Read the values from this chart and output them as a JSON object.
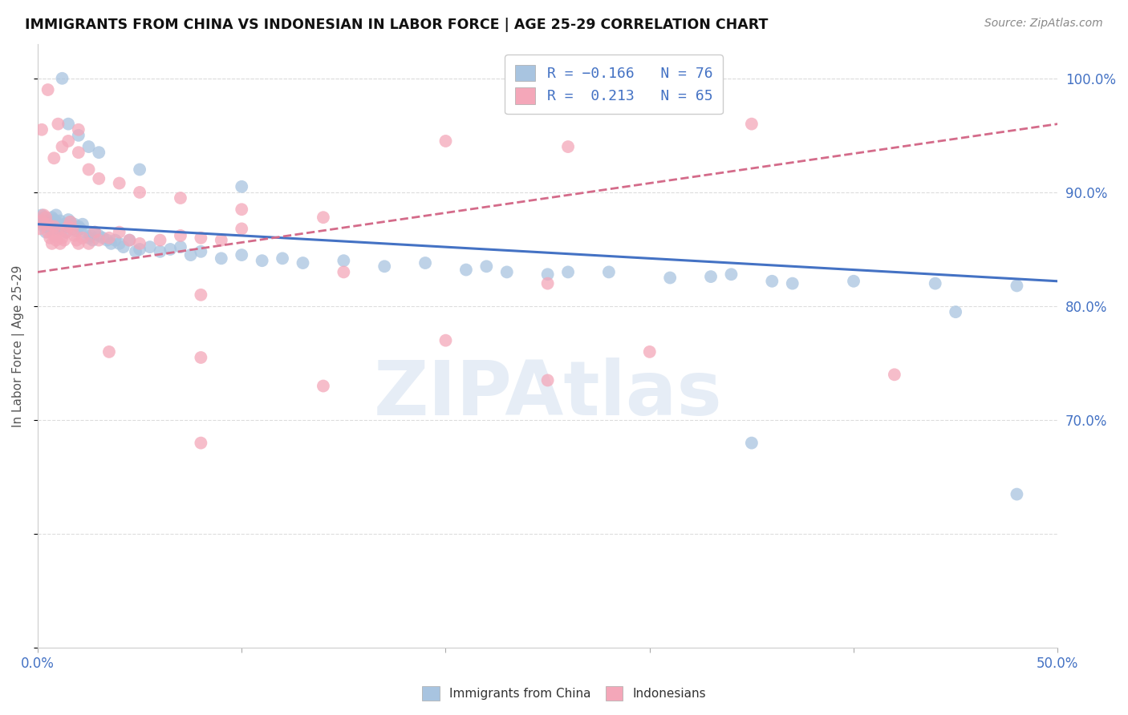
{
  "title": "IMMIGRANTS FROM CHINA VS INDONESIAN IN LABOR FORCE | AGE 25-29 CORRELATION CHART",
  "source": "Source: ZipAtlas.com",
  "ylabel": "In Labor Force | Age 25-29",
  "x_min": 0.0,
  "x_max": 0.5,
  "y_min": 0.5,
  "y_max": 1.03,
  "china_color": "#a8c4e0",
  "indonesia_color": "#f4a7b9",
  "china_line_color": "#4472c4",
  "indonesia_line_color": "#d46b8a",
  "watermark": "ZIPAtlas",
  "background_color": "#ffffff",
  "grid_color": "#dddddd",
  "china_trend_x0": 0.0,
  "china_trend_y0": 0.872,
  "china_trend_x1": 0.5,
  "china_trend_y1": 0.822,
  "indo_trend_x0": 0.0,
  "indo_trend_y0": 0.83,
  "indo_trend_x1": 0.5,
  "indo_trend_y1": 0.96,
  "china_x": [
    0.001,
    0.002,
    0.003,
    0.003,
    0.004,
    0.004,
    0.005,
    0.005,
    0.006,
    0.006,
    0.007,
    0.007,
    0.008,
    0.008,
    0.009,
    0.009,
    0.01,
    0.01,
    0.011,
    0.011,
    0.012,
    0.013,
    0.014,
    0.015,
    0.015,
    0.016,
    0.017,
    0.018,
    0.019,
    0.02,
    0.021,
    0.022,
    0.023,
    0.025,
    0.026,
    0.027,
    0.028,
    0.03,
    0.032,
    0.034,
    0.036,
    0.038,
    0.04,
    0.042,
    0.045,
    0.048,
    0.05,
    0.055,
    0.06,
    0.065,
    0.07,
    0.075,
    0.08,
    0.09,
    0.1,
    0.11,
    0.12,
    0.13,
    0.15,
    0.17,
    0.19,
    0.21,
    0.23,
    0.25,
    0.28,
    0.31,
    0.34,
    0.37,
    0.4,
    0.44,
    0.48,
    0.33,
    0.36,
    0.22,
    0.26,
    0.45
  ],
  "china_y": [
    0.875,
    0.88,
    0.878,
    0.87,
    0.872,
    0.865,
    0.87,
    0.875,
    0.872,
    0.868,
    0.878,
    0.872,
    0.876,
    0.868,
    0.88,
    0.874,
    0.872,
    0.868,
    0.875,
    0.87,
    0.868,
    0.872,
    0.865,
    0.876,
    0.87,
    0.874,
    0.868,
    0.872,
    0.866,
    0.87,
    0.868,
    0.872,
    0.865,
    0.86,
    0.862,
    0.858,
    0.865,
    0.862,
    0.86,
    0.858,
    0.855,
    0.858,
    0.855,
    0.852,
    0.858,
    0.848,
    0.85,
    0.852,
    0.848,
    0.85,
    0.852,
    0.845,
    0.848,
    0.842,
    0.845,
    0.84,
    0.842,
    0.838,
    0.84,
    0.835,
    0.838,
    0.832,
    0.83,
    0.828,
    0.83,
    0.825,
    0.828,
    0.82,
    0.822,
    0.82,
    0.818,
    0.826,
    0.822,
    0.835,
    0.83,
    0.795
  ],
  "china_x_outliers": [
    0.012,
    0.015,
    0.02,
    0.025,
    0.03,
    0.05,
    0.1,
    0.35,
    0.48
  ],
  "china_y_outliers": [
    1.0,
    0.96,
    0.95,
    0.94,
    0.935,
    0.92,
    0.905,
    0.68,
    0.635
  ],
  "indonesia_x": [
    0.001,
    0.002,
    0.003,
    0.003,
    0.004,
    0.005,
    0.005,
    0.006,
    0.007,
    0.008,
    0.008,
    0.009,
    0.01,
    0.011,
    0.012,
    0.013,
    0.014,
    0.015,
    0.016,
    0.017,
    0.018,
    0.019,
    0.02,
    0.022,
    0.025,
    0.028,
    0.03,
    0.035,
    0.04,
    0.045,
    0.05,
    0.06,
    0.07,
    0.08,
    0.09,
    0.1,
    0.008,
    0.012,
    0.015,
    0.02,
    0.025,
    0.03,
    0.04,
    0.05,
    0.07,
    0.1,
    0.14,
    0.2,
    0.26,
    0.35
  ],
  "indonesia_y": [
    0.868,
    0.875,
    0.88,
    0.872,
    0.878,
    0.865,
    0.872,
    0.86,
    0.855,
    0.862,
    0.87,
    0.858,
    0.865,
    0.855,
    0.86,
    0.858,
    0.865,
    0.87,
    0.874,
    0.868,
    0.862,
    0.858,
    0.855,
    0.86,
    0.855,
    0.865,
    0.858,
    0.86,
    0.865,
    0.858,
    0.855,
    0.858,
    0.862,
    0.86,
    0.858,
    0.868,
    0.93,
    0.94,
    0.945,
    0.935,
    0.92,
    0.912,
    0.908,
    0.9,
    0.895,
    0.885,
    0.878,
    0.945,
    0.94,
    0.96
  ],
  "indonesia_x_outliers": [
    0.002,
    0.005,
    0.01,
    0.02,
    0.08,
    0.15,
    0.25,
    0.42,
    0.14,
    0.08,
    0.25,
    0.3,
    0.08,
    0.035,
    0.2
  ],
  "indonesia_y_outliers": [
    0.955,
    0.99,
    0.96,
    0.955,
    0.81,
    0.83,
    0.82,
    0.74,
    0.73,
    0.68,
    0.735,
    0.76,
    0.755,
    0.76,
    0.77
  ]
}
